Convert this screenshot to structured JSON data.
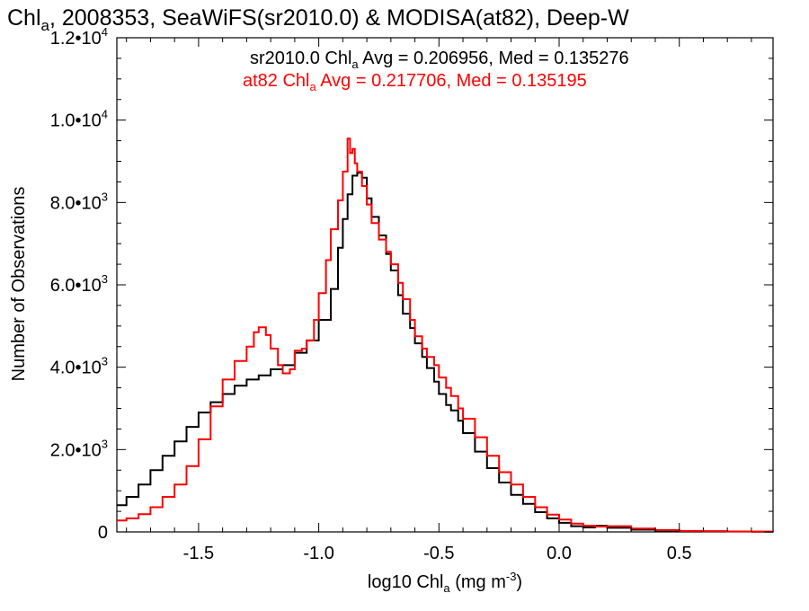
{
  "chart_data": {
    "type": "line",
    "title": {
      "prefix": "Chl",
      "sub": "a",
      "rest": ", 2008353, SeaWiFS(sr2010.0) & MODISA(at82), Deep-W"
    },
    "xlabel": {
      "prefix": "log10 Chl",
      "sub": "a",
      "mid": " (mg m",
      "sup": "-3",
      "suffix": ")"
    },
    "ylabel": "Number of Observations",
    "xlim": [
      -1.84,
      0.89
    ],
    "ylim": [
      0,
      12000
    ],
    "x_ticks": [
      {
        "value": -1.5,
        "label": "-1.5"
      },
      {
        "value": -1.0,
        "label": "-1.0"
      },
      {
        "value": -0.5,
        "label": "-0.5"
      },
      {
        "value": 0.0,
        "label": "0.0"
      },
      {
        "value": 0.5,
        "label": "0.5"
      }
    ],
    "y_ticks": [
      {
        "value": 0,
        "mant": "0",
        "exp": ""
      },
      {
        "value": 2000,
        "mant": "2.0•10",
        "exp": "3"
      },
      {
        "value": 4000,
        "mant": "4.0•10",
        "exp": "3"
      },
      {
        "value": 6000,
        "mant": "6.0•10",
        "exp": "3"
      },
      {
        "value": 8000,
        "mant": "8.0•10",
        "exp": "3"
      },
      {
        "value": 10000,
        "mant": "1.0•10",
        "exp": "4"
      },
      {
        "value": 12000,
        "mant": "1.2•10",
        "exp": "4"
      }
    ],
    "grid": false,
    "legend": [
      {
        "prefix": "sr2010.0 Chl",
        "sub": "a",
        "rest": " Avg = 0.206956, Med = 0.135276",
        "color": "#000000"
      },
      {
        "prefix": "at82 Chl",
        "sub": "a",
        "rest": " Avg = 0.217706, Med = 0.135195",
        "color": "#ff0000"
      }
    ],
    "series": [
      {
        "color": "#000000",
        "x": [
          -1.84,
          -1.8,
          -1.75,
          -1.7,
          -1.65,
          -1.6,
          -1.55,
          -1.5,
          -1.45,
          -1.4,
          -1.35,
          -1.3,
          -1.25,
          -1.2,
          -1.15,
          -1.1,
          -1.05,
          -1.0,
          -0.95,
          -0.92,
          -0.9,
          -0.88,
          -0.86,
          -0.84,
          -0.82,
          -0.8,
          -0.78,
          -0.75,
          -0.72,
          -0.7,
          -0.67,
          -0.65,
          -0.62,
          -0.6,
          -0.57,
          -0.55,
          -0.52,
          -0.5,
          -0.47,
          -0.45,
          -0.42,
          -0.4,
          -0.35,
          -0.3,
          -0.25,
          -0.2,
          -0.15,
          -0.1,
          -0.05,
          0.0,
          0.05,
          0.1,
          0.15,
          0.2,
          0.3,
          0.4,
          0.5,
          0.6,
          0.7,
          0.8,
          0.89
        ],
        "y": [
          650,
          850,
          1150,
          1500,
          1850,
          2200,
          2550,
          2900,
          3150,
          3350,
          3550,
          3700,
          3800,
          3950,
          4050,
          4350,
          4650,
          5150,
          5900,
          6900,
          7600,
          8200,
          8650,
          8720,
          8600,
          8100,
          7650,
          7200,
          6750,
          6350,
          5750,
          5300,
          4950,
          4580,
          4250,
          3980,
          3650,
          3350,
          3080,
          2950,
          2700,
          2400,
          1950,
          1550,
          1200,
          900,
          680,
          480,
          330,
          220,
          140,
          110,
          150,
          100,
          55,
          30,
          20,
          15,
          10,
          5,
          3
        ]
      },
      {
        "color": "#ff0000",
        "x": [
          -1.84,
          -1.8,
          -1.75,
          -1.7,
          -1.65,
          -1.6,
          -1.55,
          -1.5,
          -1.45,
          -1.4,
          -1.35,
          -1.3,
          -1.27,
          -1.25,
          -1.22,
          -1.2,
          -1.17,
          -1.15,
          -1.12,
          -1.1,
          -1.07,
          -1.05,
          -1.02,
          -1.0,
          -0.97,
          -0.95,
          -0.92,
          -0.9,
          -0.88,
          -0.87,
          -0.86,
          -0.85,
          -0.84,
          -0.82,
          -0.8,
          -0.78,
          -0.75,
          -0.72,
          -0.7,
          -0.67,
          -0.65,
          -0.62,
          -0.6,
          -0.57,
          -0.55,
          -0.52,
          -0.5,
          -0.47,
          -0.45,
          -0.42,
          -0.4,
          -0.35,
          -0.3,
          -0.25,
          -0.2,
          -0.15,
          -0.1,
          -0.05,
          0.0,
          0.05,
          0.1,
          0.15,
          0.2,
          0.3,
          0.4,
          0.5,
          0.6,
          0.7,
          0.8,
          0.89
        ],
        "y": [
          280,
          330,
          430,
          600,
          850,
          1150,
          1600,
          2250,
          3050,
          3700,
          4150,
          4500,
          4850,
          4970,
          4780,
          4450,
          4050,
          3850,
          3950,
          4400,
          4450,
          4650,
          5150,
          5800,
          6600,
          7350,
          8050,
          8750,
          9550,
          9200,
          9300,
          8950,
          8750,
          8400,
          7950,
          7500,
          7100,
          6800,
          6500,
          6050,
          5650,
          5150,
          4750,
          4450,
          4250,
          4050,
          3750,
          3500,
          3300,
          3000,
          2750,
          2300,
          1850,
          1450,
          1150,
          850,
          600,
          420,
          300,
          200,
          150,
          130,
          140,
          80,
          45,
          25,
          18,
          12,
          8,
          4
        ]
      }
    ]
  }
}
